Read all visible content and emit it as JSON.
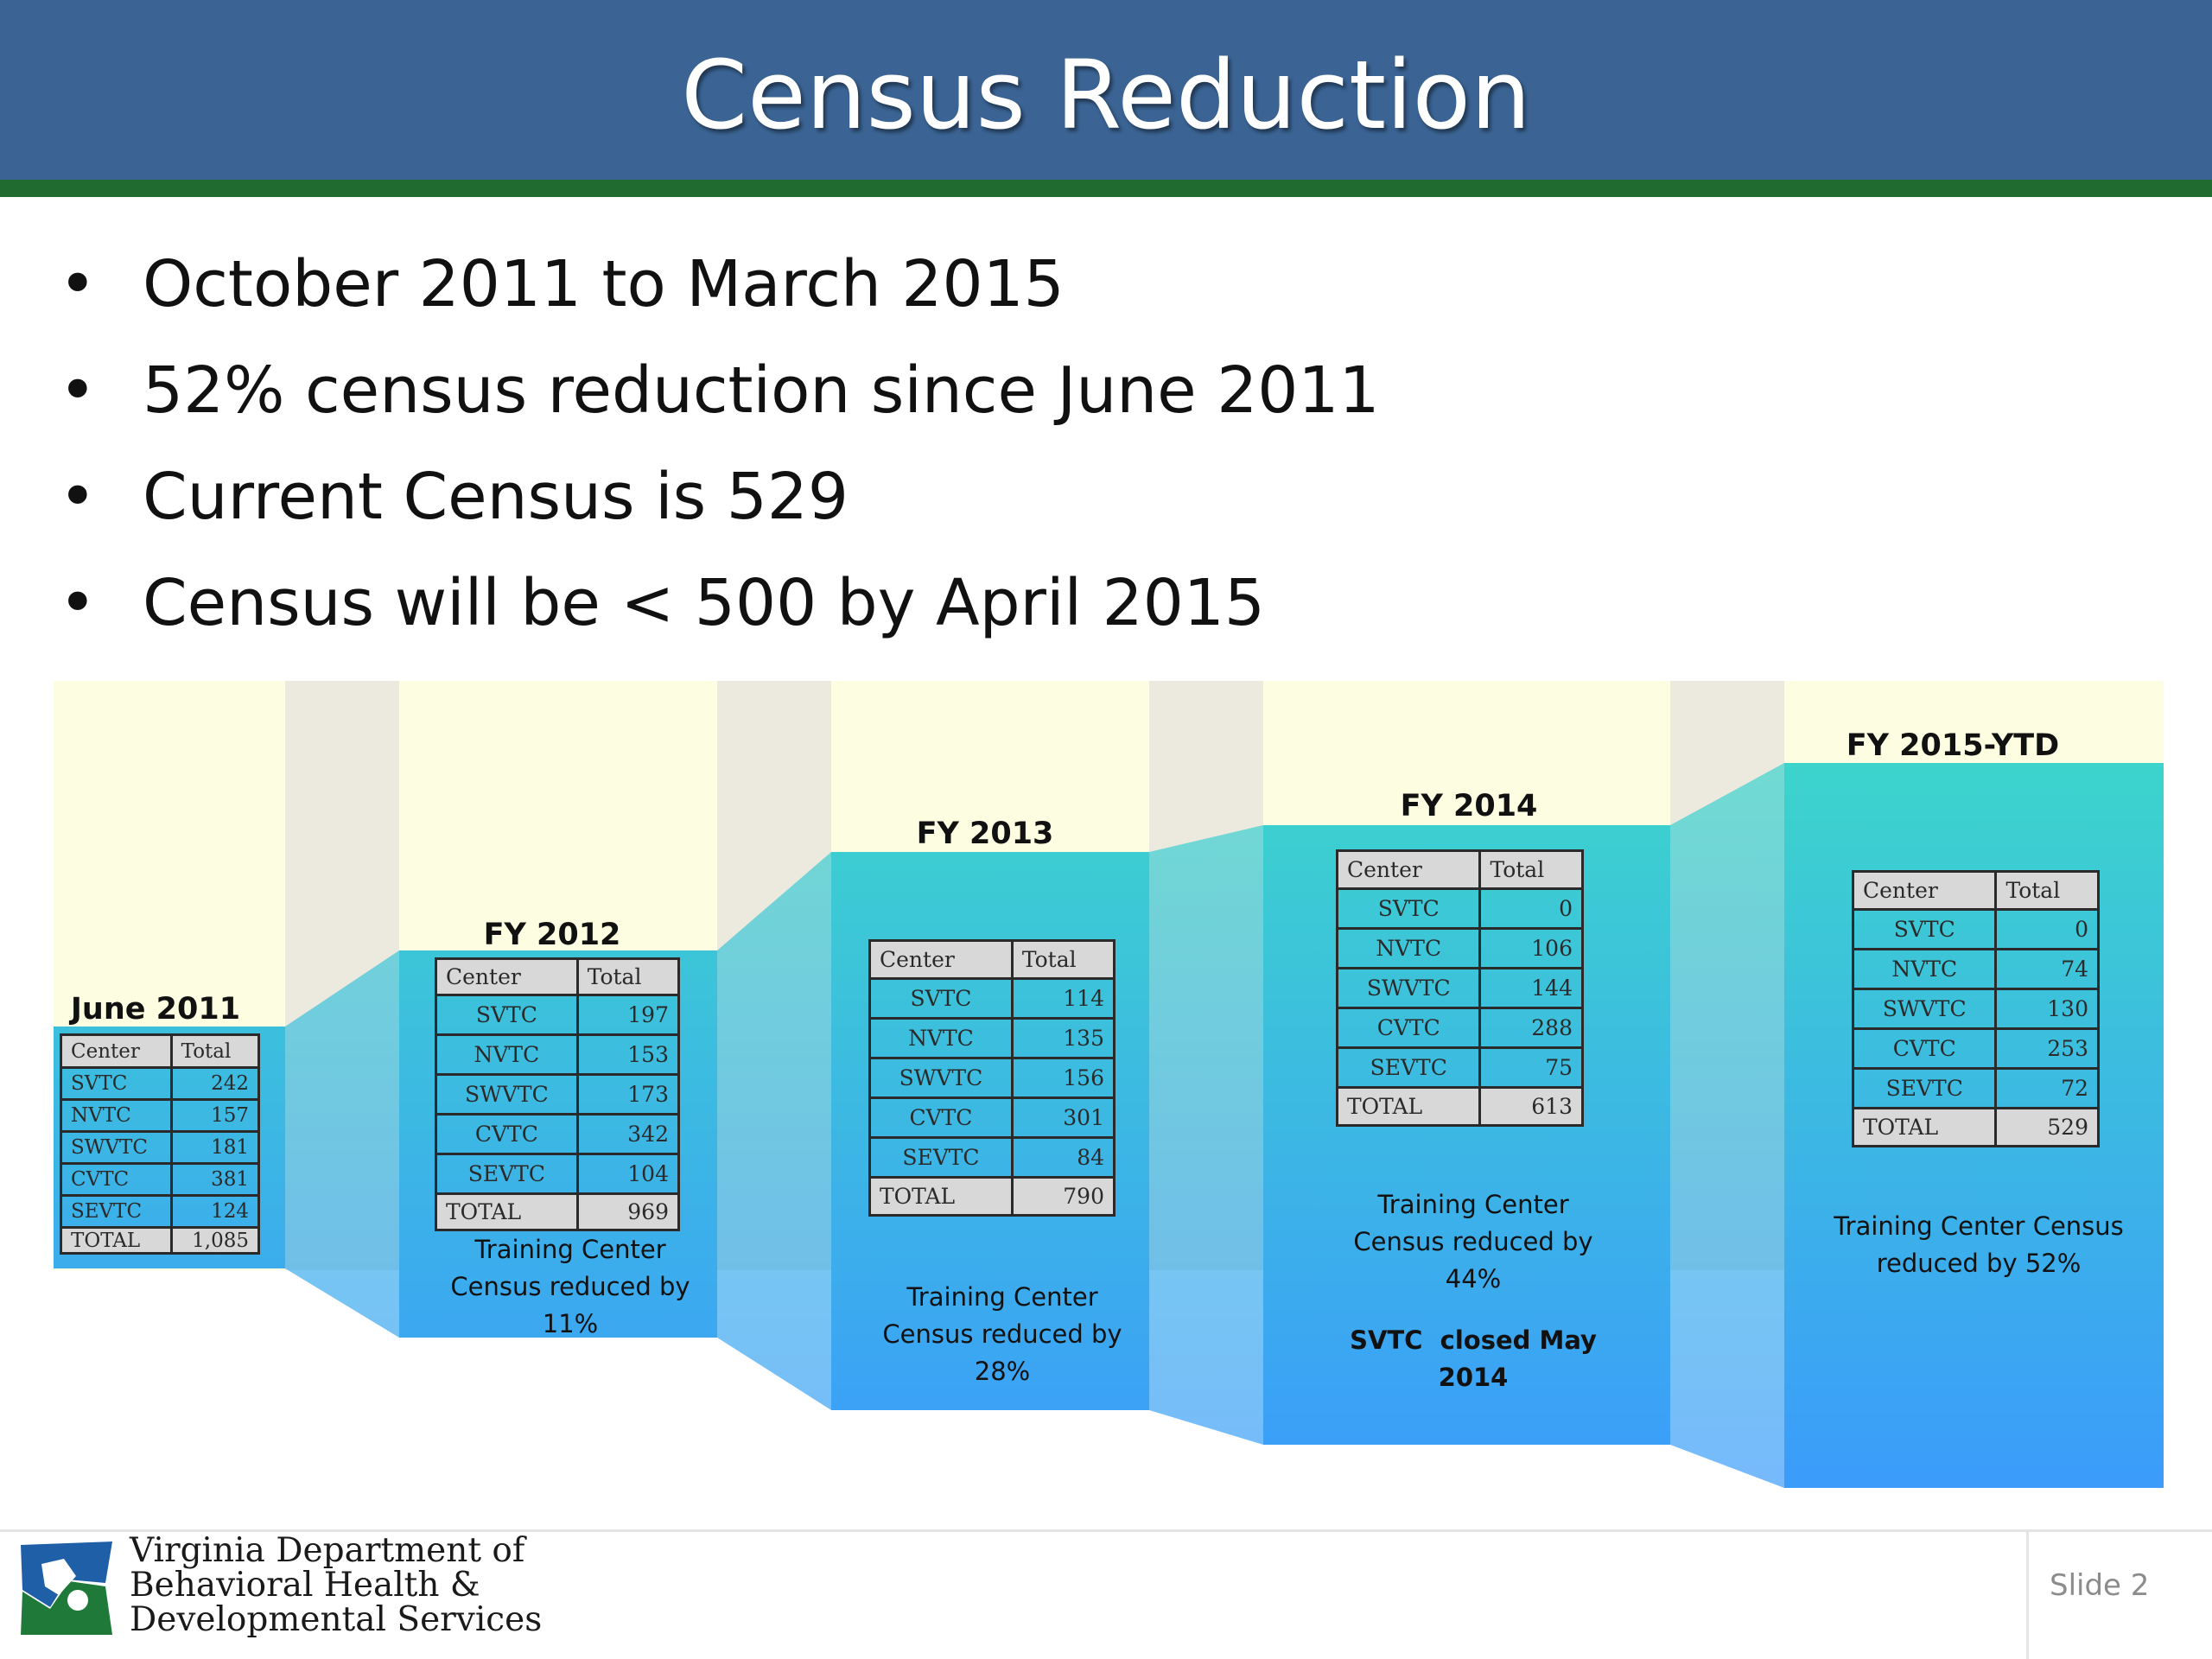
{
  "title": "Census Reduction",
  "bullets": [
    "October 2011 to March 2015",
    "52% census reduction since June 2011",
    "Current Census is 529",
    "Census will be < 500 by April 2015"
  ],
  "colors": {
    "header_blue": "#3b6494",
    "header_rule_green": "#1f6b30",
    "panel_gradient_top": "#3cd4cc",
    "panel_gradient_bottom": "#3b9bfb",
    "panel_sky": "#fdfde1",
    "gap_column": "#eceadf"
  },
  "chart_data": {
    "type": "table",
    "column_headers": [
      "Center",
      "Total"
    ],
    "total_label": "TOTAL",
    "periods": [
      {
        "name": "June 2011",
        "rows": [
          {
            "center": "SVTC",
            "total": "242"
          },
          {
            "center": "NVTC",
            "total": "157"
          },
          {
            "center": "SWVTC",
            "total": "181"
          },
          {
            "center": "CVTC",
            "total": "381"
          },
          {
            "center": "SEVTC",
            "total": "124"
          }
        ],
        "total": "1,085",
        "caption": []
      },
      {
        "name": "FY 2012",
        "rows": [
          {
            "center": "SVTC",
            "total": "197"
          },
          {
            "center": "NVTC",
            "total": "153"
          },
          {
            "center": "SWVTC",
            "total": "173"
          },
          {
            "center": "CVTC",
            "total": "342"
          },
          {
            "center": "SEVTC",
            "total": "104"
          }
        ],
        "total": "969",
        "caption": [
          "Training Center",
          "Census reduced by",
          "11%"
        ]
      },
      {
        "name": "FY 2013",
        "rows": [
          {
            "center": "SVTC",
            "total": "114"
          },
          {
            "center": "NVTC",
            "total": "135"
          },
          {
            "center": "SWVTC",
            "total": "156"
          },
          {
            "center": "CVTC",
            "total": "301"
          },
          {
            "center": "SEVTC",
            "total": "84"
          }
        ],
        "total": "790",
        "caption": [
          "Training Center",
          "Census reduced by",
          "28%"
        ]
      },
      {
        "name": "FY 2014",
        "rows": [
          {
            "center": "SVTC",
            "total": "0"
          },
          {
            "center": "NVTC",
            "total": "106"
          },
          {
            "center": "SWVTC",
            "total": "144"
          },
          {
            "center": "CVTC",
            "total": "288"
          },
          {
            "center": "SEVTC",
            "total": "75"
          }
        ],
        "total": "613",
        "caption": [
          "Training Center",
          "Census reduced by",
          "44%"
        ],
        "note": [
          "SVTC  closed May",
          "2014"
        ]
      },
      {
        "name": "FY 2015-YTD",
        "rows": [
          {
            "center": "SVTC",
            "total": "0"
          },
          {
            "center": "NVTC",
            "total": "74"
          },
          {
            "center": "SWVTC",
            "total": "130"
          },
          {
            "center": "CVTC",
            "total": "253"
          },
          {
            "center": "SEVTC",
            "total": "72"
          }
        ],
        "total": "529",
        "caption": [
          "Training Center Census",
          "reduced by 52%"
        ]
      }
    ]
  },
  "footer": {
    "org_lines": [
      "Virginia Department of",
      "Behavioral Health &",
      "Developmental Services"
    ],
    "slide_number": "Slide 2"
  }
}
